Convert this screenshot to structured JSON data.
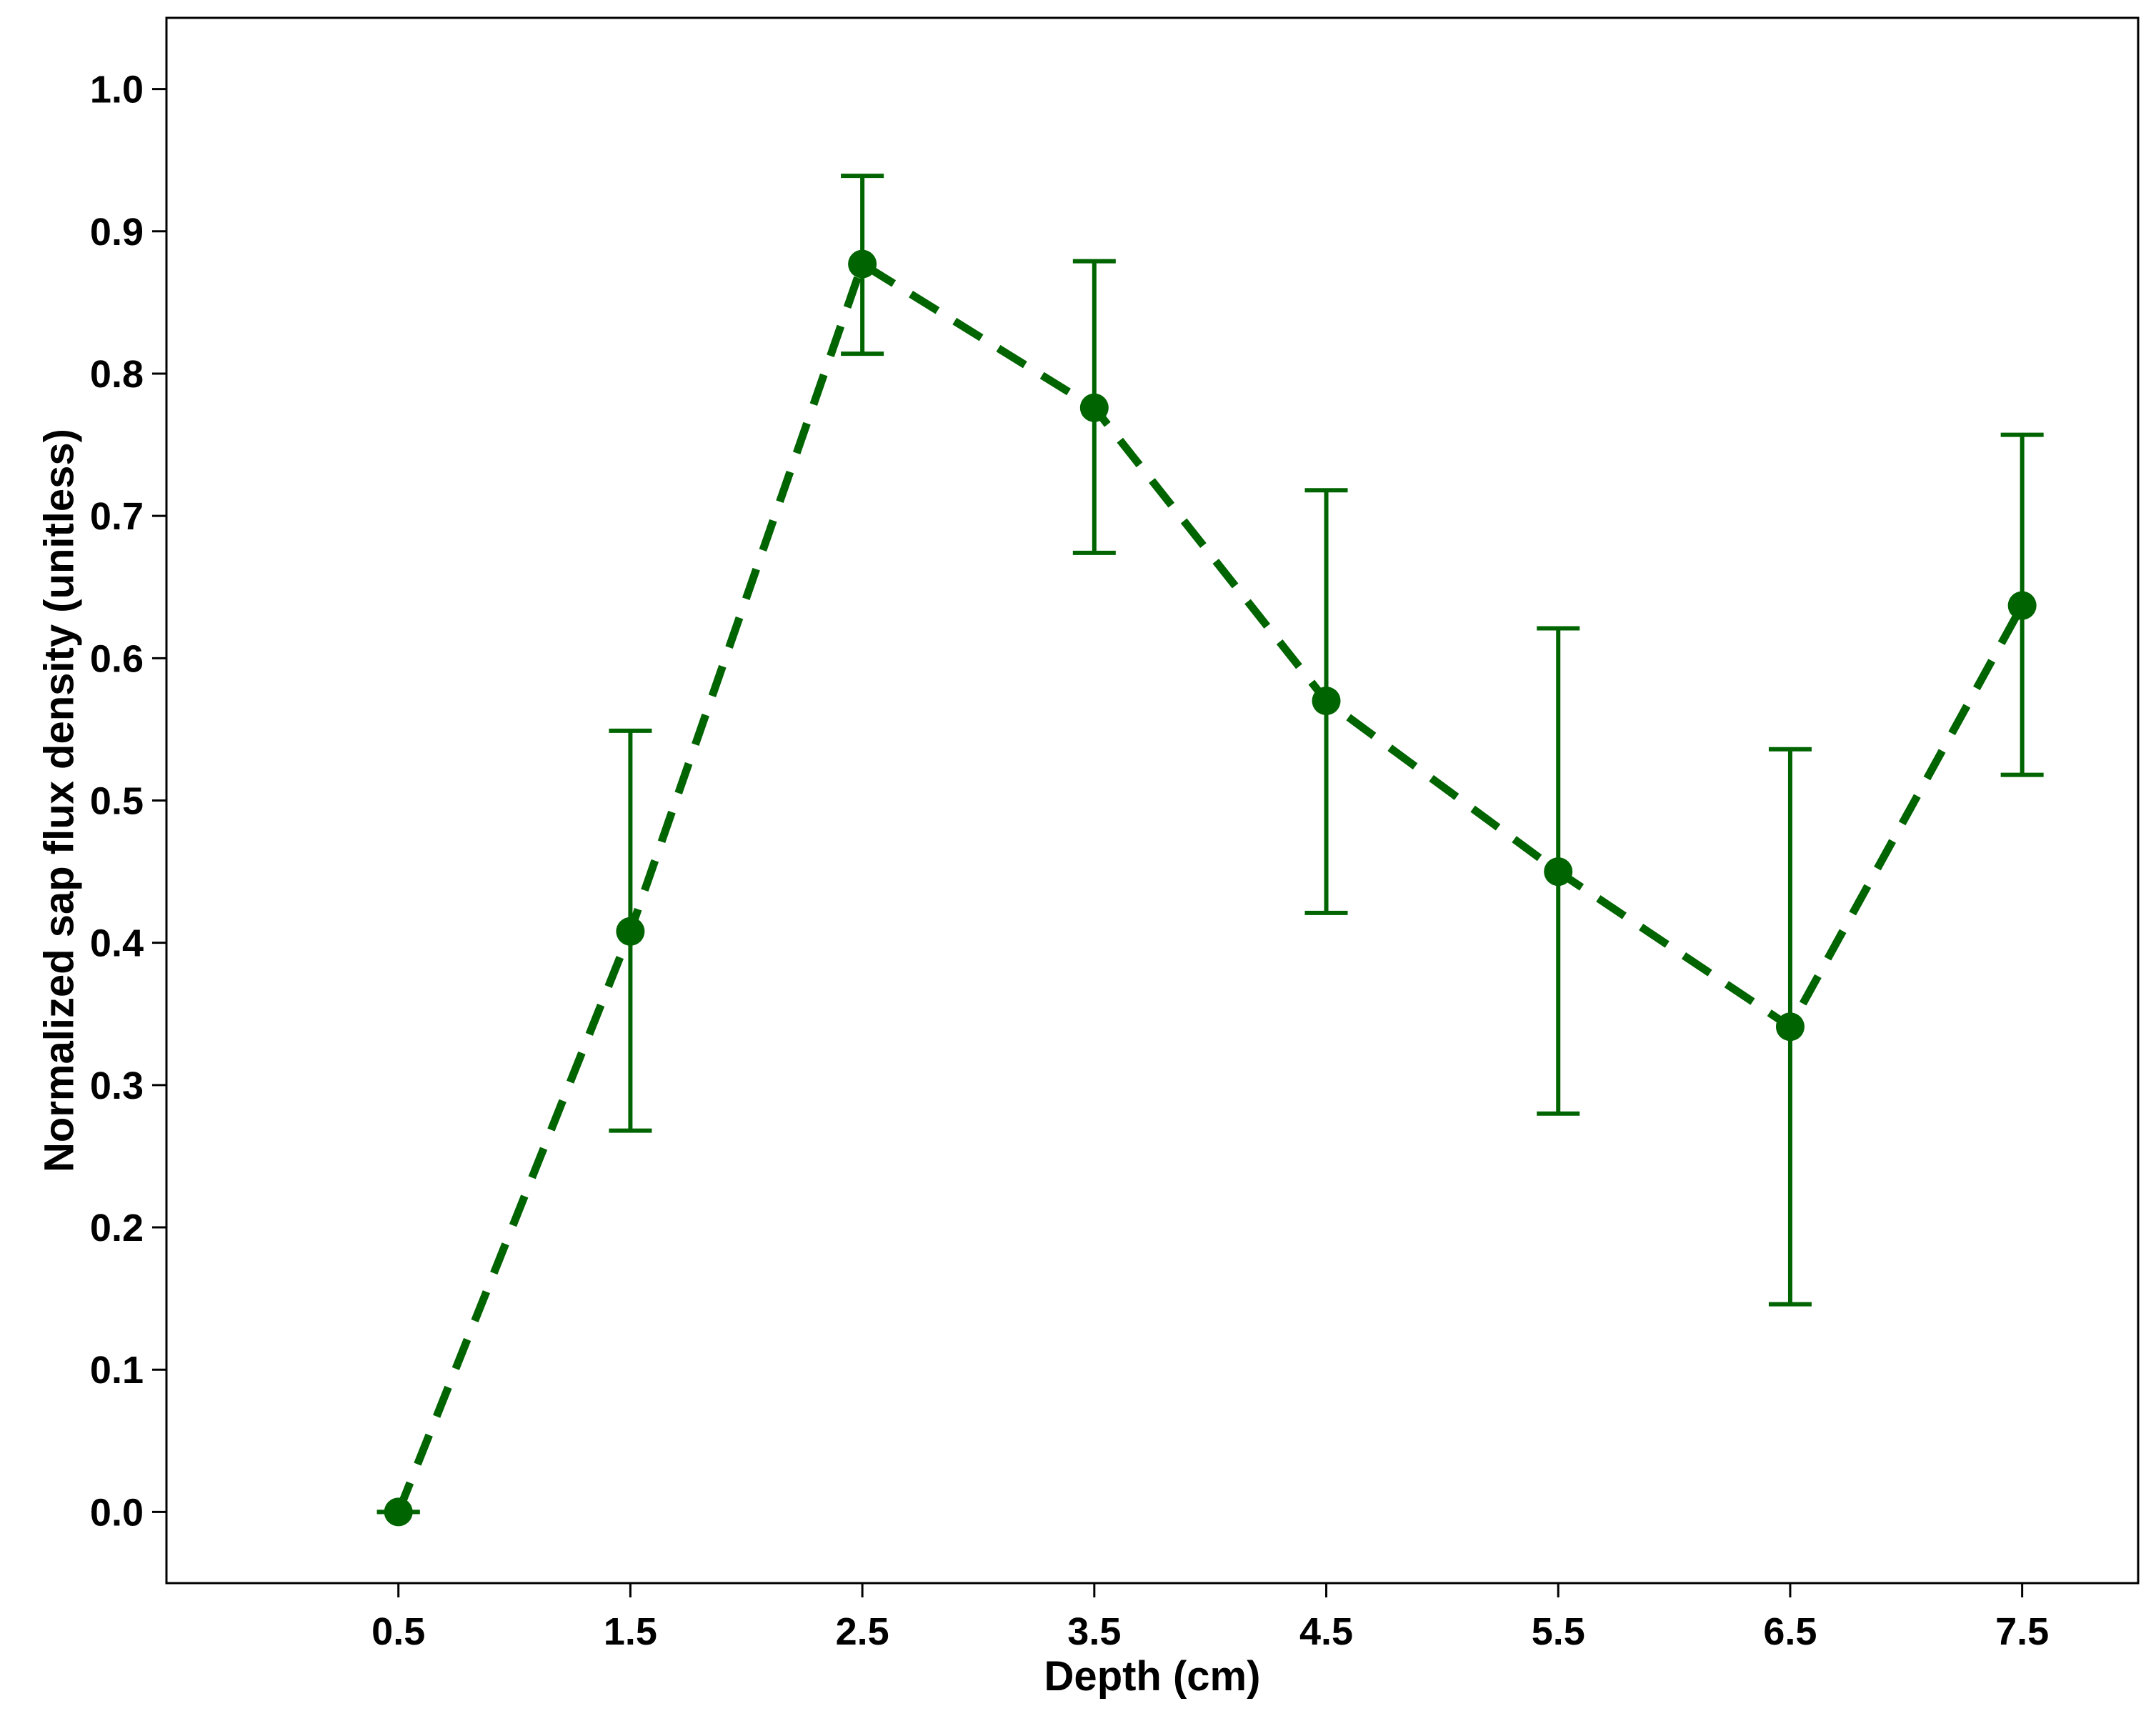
{
  "chart_data": {
    "type": "line",
    "xlabel": "Depth (cm)",
    "ylabel": "Normalized sap flux density (unitless)",
    "x_ticks": [
      "0.5",
      "1.5",
      "2.5",
      "3.5",
      "4.5",
      "5.5",
      "6.5",
      "7.5"
    ],
    "y_ticks": [
      "0.0",
      "0.1",
      "0.2",
      "0.3",
      "0.4",
      "0.5",
      "0.6",
      "0.7",
      "0.8",
      "0.9",
      "1.0"
    ],
    "xlim": [
      -0.5,
      8.0
    ],
    "ylim": [
      -0.05,
      1.05
    ],
    "grid": false,
    "line_style": "dashed",
    "color": "#006400",
    "points": [
      {
        "x": 0.5,
        "y": 0.0,
        "lower": 0.0,
        "upper": 0.0
      },
      {
        "x": 1.5,
        "y": 0.408,
        "lower": 0.268,
        "upper": 0.549
      },
      {
        "x": 2.5,
        "y": 0.877,
        "lower": 0.814,
        "upper": 0.939
      },
      {
        "x": 3.5,
        "y": 0.776,
        "lower": 0.674,
        "upper": 0.879
      },
      {
        "x": 4.5,
        "y": 0.57,
        "lower": 0.421,
        "upper": 0.718
      },
      {
        "x": 5.5,
        "y": 0.45,
        "lower": 0.28,
        "upper": 0.621
      },
      {
        "x": 6.5,
        "y": 0.341,
        "lower": 0.146,
        "upper": 0.536
      },
      {
        "x": 7.5,
        "y": 0.637,
        "lower": 0.518,
        "upper": 0.757
      }
    ]
  }
}
